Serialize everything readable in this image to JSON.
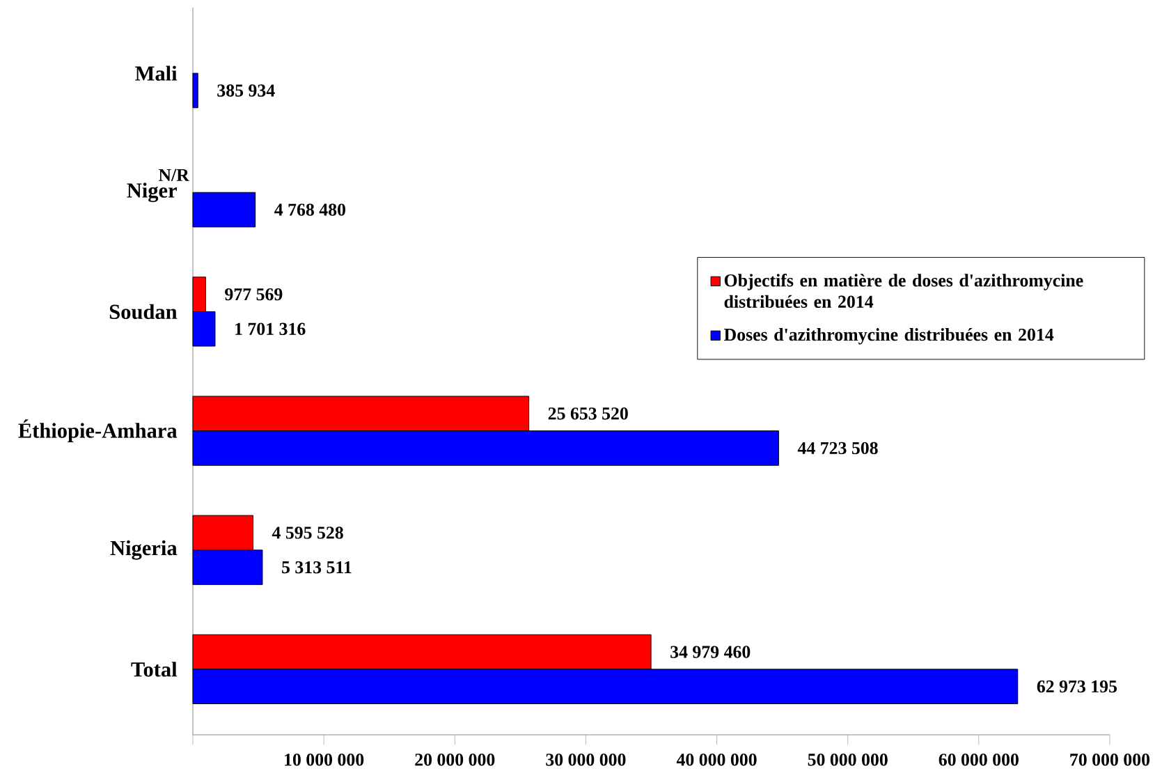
{
  "chart_data": {
    "type": "bar",
    "orientation": "horizontal",
    "categories": [
      "Mali",
      "Niger",
      "Soudan",
      "Éthiopie-Amhara",
      "Nigeria",
      "Total"
    ],
    "series": [
      {
        "name": "Objectifs en matière de doses d'azithromycine distribuées en 2014",
        "color": "#ff0000",
        "values": [
          null,
          null,
          977569,
          25653520,
          4595528,
          34979460
        ],
        "value_labels": [
          null,
          "N/R",
          "977 569",
          "25 653 520",
          "4 595 528",
          "34 979 460"
        ]
      },
      {
        "name": "Doses d'azithromycine distribuées en 2014",
        "color": "#0000ff",
        "values": [
          385934,
          4768480,
          1701316,
          44723508,
          5313511,
          62973195
        ],
        "value_labels": [
          "385 934",
          "4 768 480",
          "1 701 316",
          "44 723 508",
          "5 313 511",
          "62 973 195"
        ]
      }
    ],
    "xlim": [
      0,
      70000000
    ],
    "xticks": [
      {
        "value": 0,
        "label": null
      },
      {
        "value": 10000000,
        "label": "10 000 000"
      },
      {
        "value": 20000000,
        "label": "20 000 000"
      },
      {
        "value": 30000000,
        "label": "30 000 000"
      },
      {
        "value": 40000000,
        "label": "40 000 000"
      },
      {
        "value": 50000000,
        "label": "50 000 000"
      },
      {
        "value": 60000000,
        "label": "60 000 000"
      },
      {
        "value": 70000000,
        "label": "70 000 000"
      }
    ],
    "grid": false,
    "legend": "right"
  }
}
